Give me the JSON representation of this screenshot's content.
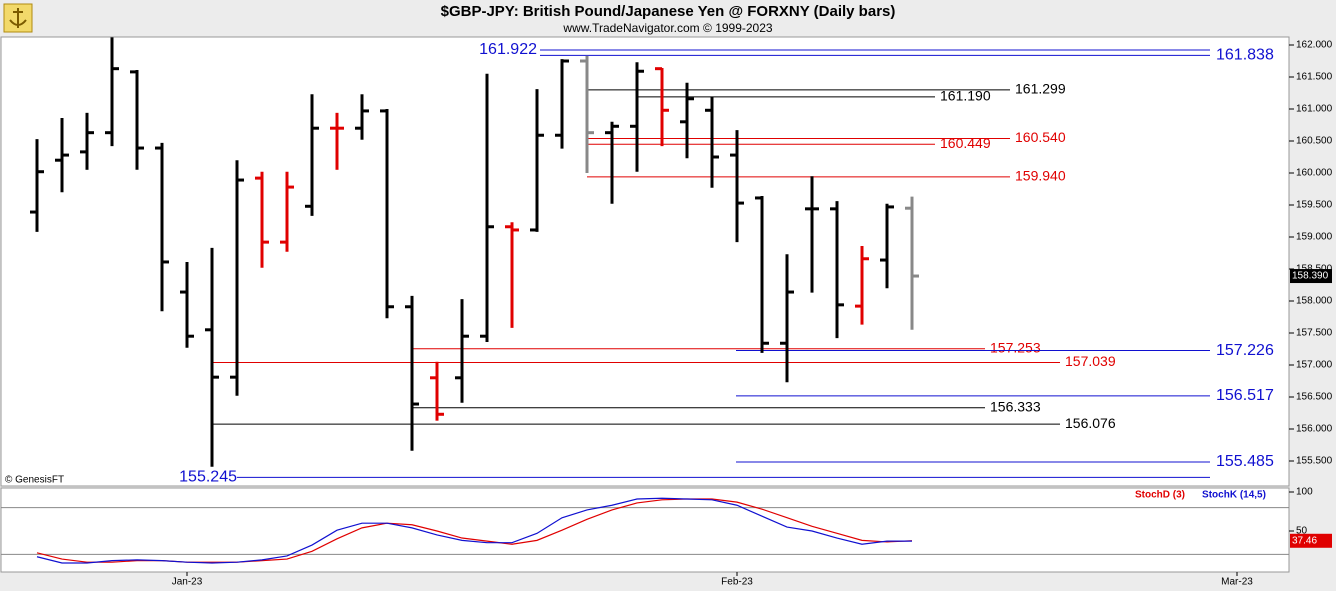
{
  "chart_data": [
    {
      "type": "ohlc",
      "title": "$GBP-JPY:  British Pound/Japanese Yen @ FORXNY  (Daily bars)",
      "subtitle": "www.TradeNavigator.com © 1999-2023",
      "annotations": [
        "© GenesisFT"
      ],
      "categories": [
        null,
        null,
        null,
        null,
        null,
        null,
        null,
        null,
        null,
        null,
        null,
        null,
        null,
        null,
        null,
        null,
        null,
        null,
        null,
        null,
        null,
        null,
        null,
        null,
        null,
        null,
        null,
        null,
        null,
        null,
        null,
        null,
        null,
        null,
        null,
        null
      ],
      "xticks": [
        {
          "value": 6,
          "label": "Jan-23"
        },
        {
          "value": 28,
          "label": "Feb-23"
        },
        {
          "value": 48,
          "label": "Mar-23"
        }
      ],
      "open": [
        159.39,
        160.2,
        160.33,
        160.63,
        161.58,
        160.39,
        158.14,
        157.55,
        156.81,
        159.92,
        158.92,
        159.48,
        160.7,
        160.7,
        160.97,
        157.91,
        156.8,
        156.8,
        157.45,
        159.16,
        159.11,
        160.59,
        161.75,
        160.63,
        160.73,
        161.63,
        160.8,
        160.98,
        160.28,
        159.61,
        157.34,
        159.44,
        159.44,
        157.92,
        158.64,
        159.45
      ],
      "high": [
        160.53,
        160.86,
        160.94,
        162.12,
        161.61,
        160.47,
        158.61,
        158.83,
        160.2,
        160.02,
        160.02,
        161.23,
        160.94,
        161.23,
        161.0,
        158.08,
        157.05,
        158.03,
        161.55,
        159.23,
        161.31,
        161.78,
        161.83,
        160.8,
        161.73,
        161.64,
        161.41,
        161.19,
        160.67,
        159.64,
        158.73,
        159.95,
        159.56,
        158.86,
        159.52,
        159.63
      ],
      "low": [
        159.08,
        159.7,
        160.05,
        160.42,
        160.05,
        157.84,
        157.27,
        155.41,
        156.52,
        158.52,
        158.77,
        159.33,
        160.05,
        160.52,
        157.73,
        155.66,
        156.13,
        156.41,
        157.36,
        157.58,
        159.08,
        160.38,
        160.0,
        159.52,
        160.02,
        160.42,
        160.23,
        159.77,
        158.92,
        157.19,
        156.73,
        158.13,
        157.42,
        157.63,
        158.2,
        157.55
      ],
      "close": [
        160.02,
        160.28,
        160.63,
        161.63,
        160.39,
        158.61,
        157.45,
        156.81,
        159.89,
        158.92,
        159.78,
        160.7,
        160.7,
        160.97,
        157.91,
        156.39,
        156.23,
        157.45,
        159.16,
        159.11,
        160.59,
        161.75,
        160.63,
        160.73,
        161.59,
        160.98,
        161.16,
        160.25,
        159.53,
        157.34,
        158.14,
        159.44,
        157.94,
        158.66,
        159.47,
        158.39
      ],
      "colors": [
        "#000",
        "#000",
        "#000",
        "#000",
        "#000",
        "#000",
        "#000",
        "#000",
        "#000",
        "#e00000",
        "#e00000",
        "#000",
        "#e00000",
        "#000",
        "#000",
        "#000",
        "#e00000",
        "#000",
        "#000",
        "#e00000",
        "#000",
        "#000",
        "#888",
        "#000",
        "#000",
        "#e00000",
        "#000",
        "#000",
        "#000",
        "#000",
        "#000",
        "#000",
        "#000",
        "#e00000",
        "#000",
        "#888"
      ],
      "last_value": {
        "value": 158.39,
        "label": "158.390"
      },
      "levels": [
        {
          "value": 161.922,
          "label": "161.922",
          "color": "#1010d0"
        },
        {
          "value": 161.838,
          "label": "161.838",
          "color": "#1010d0"
        },
        {
          "value": 161.299,
          "label": "161.299",
          "color": "#000000"
        },
        {
          "value": 161.19,
          "label": "161.190",
          "color": "#000000"
        },
        {
          "value": 160.54,
          "label": "160.540",
          "color": "#e00000"
        },
        {
          "value": 160.449,
          "label": "160.449",
          "color": "#e00000"
        },
        {
          "value": 159.94,
          "label": "159.940",
          "color": "#e00000"
        },
        {
          "value": 157.253,
          "label": "157.253",
          "color": "#e00000"
        },
        {
          "value": 157.039,
          "label": "157.039",
          "color": "#e00000"
        },
        {
          "value": 157.226,
          "label": "157.226",
          "color": "#1010d0"
        },
        {
          "value": 156.517,
          "label": "156.517",
          "color": "#1010d0"
        },
        {
          "value": 156.333,
          "label": "156.333",
          "color": "#000000"
        },
        {
          "value": 156.076,
          "label": "156.076",
          "color": "#000000"
        },
        {
          "value": 155.485,
          "label": "155.485",
          "color": "#1010d0"
        },
        {
          "value": 155.245,
          "label": "155.245",
          "color": "#1010d0"
        }
      ],
      "ylim": [
        155.0,
        162.1
      ],
      "yticks": [
        {
          "value": 155.5,
          "label": "155.500"
        },
        {
          "value": 156,
          "label": "156.000"
        },
        {
          "value": 156.5,
          "label": "156.500"
        },
        {
          "value": 157,
          "label": "157.000"
        },
        {
          "value": 157.5,
          "label": "157.500"
        },
        {
          "value": 158,
          "label": "158.000"
        },
        {
          "value": 158.5,
          "label": "158.500"
        },
        {
          "value": 159,
          "label": "159.000"
        },
        {
          "value": 159.5,
          "label": "159.500"
        },
        {
          "value": 160,
          "label": "160.000"
        },
        {
          "value": 160.5,
          "label": "160.500"
        },
        {
          "value": 161,
          "label": "161.000"
        },
        {
          "value": 161.5,
          "label": "161.500"
        },
        {
          "value": 162,
          "label": "162.000"
        }
      ]
    },
    {
      "type": "line",
      "series": [
        {
          "name": "StochD (3)",
          "color": "#e00000",
          "values": [
            22,
            14,
            10,
            10,
            12,
            12,
            10,
            10,
            10,
            12,
            14,
            24,
            40,
            54,
            60,
            58,
            50,
            41,
            37,
            33,
            38,
            51,
            65,
            77,
            86,
            90,
            91,
            91,
            87,
            78,
            67,
            56,
            47,
            38,
            36,
            37.46
          ]
        },
        {
          "name": "StochK (14,5)",
          "color": "#1010d0",
          "values": [
            17,
            9,
            9,
            12,
            13,
            12,
            10,
            9,
            10,
            13,
            18,
            32,
            51,
            60,
            60,
            54,
            45,
            38,
            35,
            35,
            47,
            67,
            77,
            83,
            91,
            92,
            91,
            90,
            83,
            69,
            55,
            50,
            41,
            33,
            37,
            37
          ]
        }
      ],
      "last_value": 37.46,
      "guides": [
        80,
        20
      ],
      "ylim": [
        0,
        100
      ],
      "yticks": [
        100,
        50
      ]
    }
  ]
}
